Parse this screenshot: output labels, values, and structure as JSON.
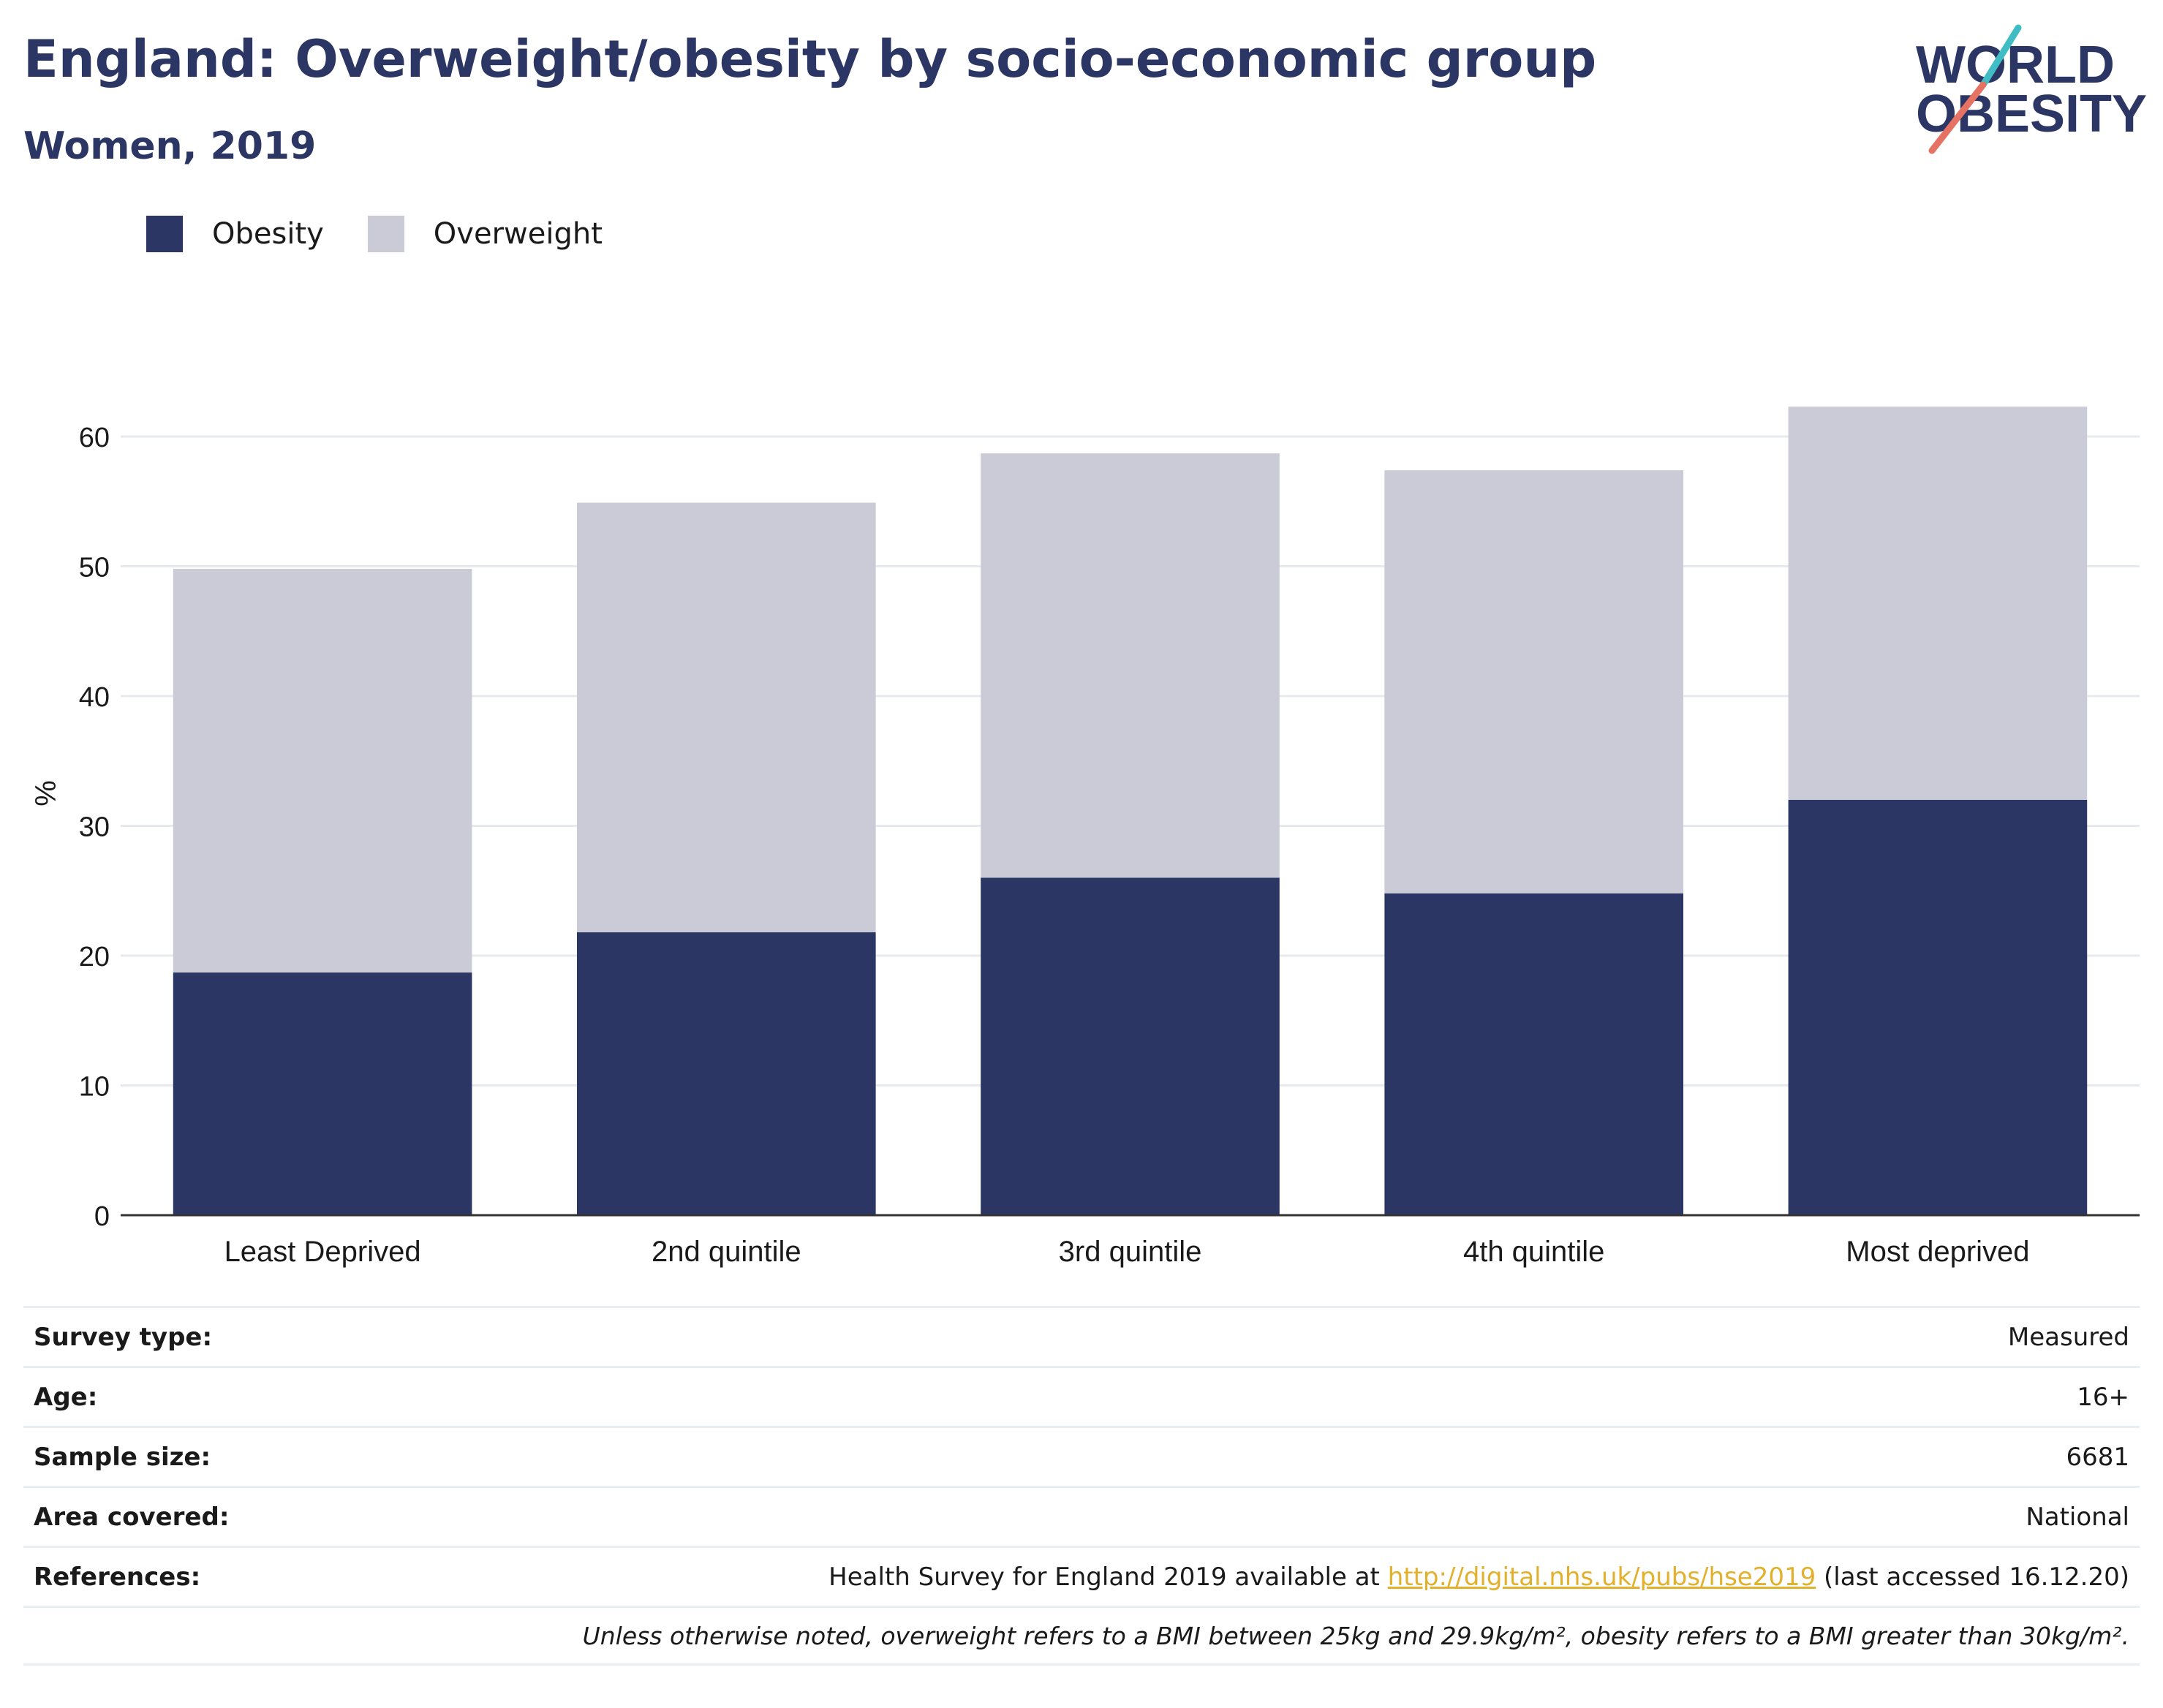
{
  "header": {
    "title": "England: Overweight/obesity by socio-economic group",
    "subtitle": "Women, 2019"
  },
  "logo": {
    "line1": "WORLD",
    "line2": "OBESITY"
  },
  "legend": [
    {
      "label": "Obesity",
      "color": "#2b3664"
    },
    {
      "label": "Overweight",
      "color": "#cacbd6"
    }
  ],
  "chart_data": {
    "type": "bar",
    "stacked": true,
    "categories": [
      "Least Deprived",
      "2nd quintile",
      "3rd quintile",
      "4th quintile",
      "Most deprived"
    ],
    "series": [
      {
        "name": "Obesity",
        "color": "#2b3664",
        "values": [
          18.7,
          21.8,
          26.0,
          24.8,
          32.0
        ]
      },
      {
        "name": "Overweight",
        "color": "#cacbd6",
        "values": [
          31.1,
          33.1,
          32.7,
          32.6,
          30.3
        ]
      }
    ],
    "ylabel": "%",
    "ylim": [
      0,
      65
    ],
    "yticks": [
      0,
      10,
      20,
      30,
      40,
      50,
      60
    ],
    "grid": true,
    "legend_position": "top-left"
  },
  "meta": {
    "survey_type_label": "Survey type:",
    "survey_type_value": "Measured",
    "age_label": "Age:",
    "age_value": "16+",
    "sample_size_label": "Sample size:",
    "sample_size_value": "6681",
    "area_label": "Area covered:",
    "area_value": "National",
    "references_label": "References:",
    "references_prefix": "Health Survey for England 2019 available at ",
    "references_link": "http://digital.nhs.uk/pubs/hse2019",
    "references_suffix": " (last accessed 16.12.20)",
    "note": "Unless otherwise noted, overweight refers to a BMI between 25kg and 29.9kg/m², obesity refers to a BMI greater than 30kg/m²."
  }
}
